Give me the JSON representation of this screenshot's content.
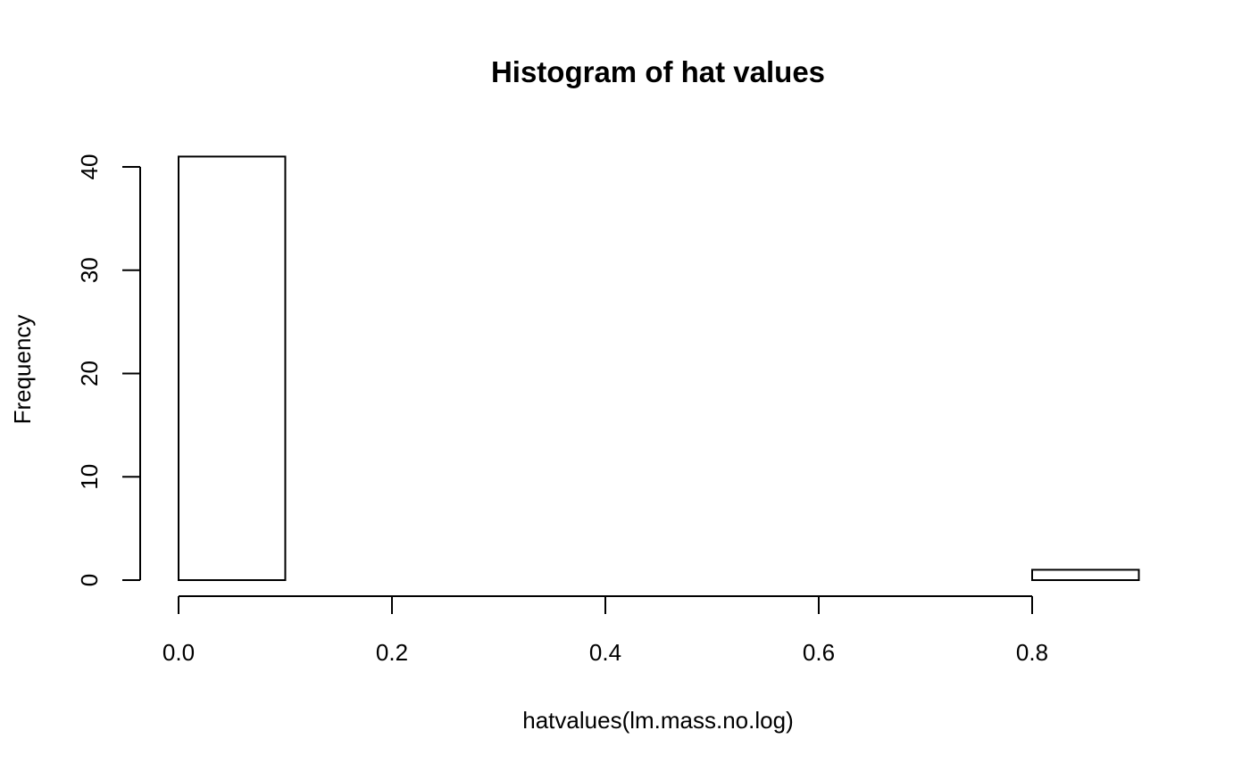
{
  "chart_data": {
    "type": "bar",
    "title": "Histogram of hat values",
    "xlabel": "hatvalues(lm.mass.no.log)",
    "ylabel": "Frequency",
    "bins": [
      {
        "x0": 0.0,
        "x1": 0.1,
        "count": 41
      },
      {
        "x0": 0.1,
        "x1": 0.2,
        "count": 0
      },
      {
        "x0": 0.2,
        "x1": 0.3,
        "count": 0
      },
      {
        "x0": 0.3,
        "x1": 0.4,
        "count": 0
      },
      {
        "x0": 0.4,
        "x1": 0.5,
        "count": 0
      },
      {
        "x0": 0.5,
        "x1": 0.6,
        "count": 0
      },
      {
        "x0": 0.6,
        "x1": 0.7,
        "count": 0
      },
      {
        "x0": 0.7,
        "x1": 0.8,
        "count": 0
      },
      {
        "x0": 0.8,
        "x1": 0.9,
        "count": 1
      }
    ],
    "x_ticks": [
      0.0,
      0.2,
      0.4,
      0.6,
      0.8
    ],
    "x_tick_labels": [
      "0.0",
      "0.2",
      "0.4",
      "0.6",
      "0.8"
    ],
    "y_ticks": [
      0,
      10,
      20,
      30,
      40
    ],
    "y_tick_labels": [
      "0",
      "10",
      "20",
      "30",
      "40"
    ],
    "xlim": [
      0.0,
      0.9
    ],
    "ylim": [
      0,
      41
    ],
    "grid": false,
    "bar_fill": "#ffffff",
    "bar_stroke": "#000000"
  }
}
